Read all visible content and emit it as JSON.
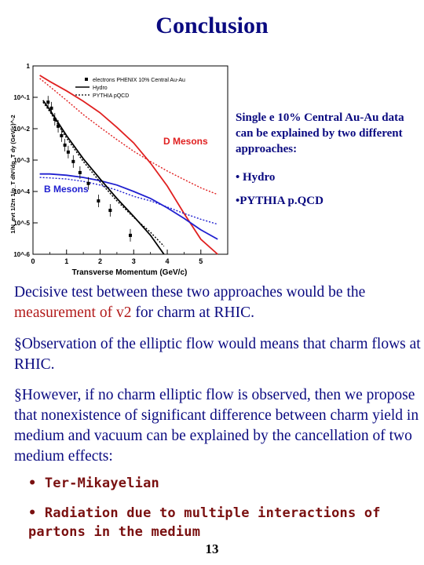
{
  "slide": {
    "title": "Conclusion",
    "page_number": "13"
  },
  "figure": {
    "ylabel": "1/N_evt 1/2π 1/p_T dN²/dp_T dy (GeV/c)^-2",
    "xlabel": "Transverse Momentum (GeV/c)",
    "legend": [
      {
        "label": "electrons PHENIX 10% Central Au-Au",
        "style": "marker"
      },
      {
        "label": "Hydro",
        "style": "solid"
      },
      {
        "label": "PYTHIA pQCD",
        "style": "dotted"
      }
    ],
    "annotations": {
      "d_mesons": "D Mesons",
      "b_mesons": "B Mesons"
    },
    "colors": {
      "red": "#e02020",
      "blue": "#2020d0",
      "black": "#000000"
    }
  },
  "chart_data": {
    "type": "line",
    "xlabel": "Transverse Momentum (GeV/c)",
    "ylabel": "1/N_evt 1/2π 1/p_T dN²/dp_T dy (GeV/c)^-2",
    "xlim": [
      0,
      5.8
    ],
    "ylim_log10": [
      -6,
      0
    ],
    "yscale": "log",
    "xticks": [
      "0",
      "1",
      "2",
      "3",
      "4",
      "5"
    ],
    "yticks": [
      "1",
      "10^-1",
      "10^-2",
      "10^-3",
      "10^-4",
      "10^-5",
      "10^-6"
    ],
    "series": [
      {
        "name": "D Mesons Hydro",
        "color": "#e02020",
        "style": "solid",
        "x": [
          0.2,
          0.5,
          1.0,
          1.5,
          2.0,
          2.5,
          3.0,
          3.5,
          4.0,
          4.5,
          5.0,
          5.5
        ],
        "y": [
          0.5,
          0.32,
          0.16,
          0.075,
          0.032,
          0.011,
          0.0035,
          0.0008,
          0.00015,
          2e-05,
          3e-06,
          1e-06
        ]
      },
      {
        "name": "D Mesons PYTHIA",
        "color": "#e02020",
        "style": "dotted",
        "x": [
          0.2,
          0.5,
          1.0,
          1.5,
          2.0,
          2.5,
          3.0,
          3.5,
          4.0,
          4.5,
          5.0,
          5.5
        ],
        "y": [
          0.4,
          0.22,
          0.08,
          0.028,
          0.011,
          0.0045,
          0.0019,
          0.0009,
          0.00045,
          0.00024,
          0.00013,
          8e-05
        ]
      },
      {
        "name": "B Mesons Hydro",
        "color": "#2020d0",
        "style": "solid",
        "x": [
          0.2,
          0.5,
          1.0,
          1.5,
          2.0,
          2.5,
          3.0,
          3.5,
          4.0,
          4.5,
          5.0,
          5.5
        ],
        "y": [
          0.00036,
          0.00036,
          0.00033,
          0.00028,
          0.00022,
          0.00016,
          0.0001,
          6e-05,
          3e-05,
          1.4e-05,
          6e-06,
          3e-06
        ]
      },
      {
        "name": "B Mesons PYTHIA",
        "color": "#2020d0",
        "style": "dotted",
        "x": [
          0.2,
          0.5,
          1.0,
          1.5,
          2.0,
          2.5,
          3.0,
          3.5,
          4.0,
          4.5,
          5.0,
          5.5
        ],
        "y": [
          0.00028,
          0.00027,
          0.00025,
          0.00021,
          0.00016,
          0.00011,
          7e-05,
          5e-05,
          3.2e-05,
          2e-05,
          1.3e-05,
          9e-06
        ]
      },
      {
        "name": "Sum Hydro",
        "color": "#000000",
        "style": "solid",
        "x": [
          0.3,
          0.5,
          1.0,
          1.5,
          2.0,
          2.5,
          3.0,
          3.5,
          3.9
        ],
        "y": [
          0.08,
          0.04,
          0.006,
          0.0011,
          0.00025,
          6e-05,
          1.6e-05,
          4e-06,
          1e-06
        ]
      },
      {
        "name": "Sum PYTHIA",
        "color": "#000000",
        "style": "dotted",
        "x": [
          0.3,
          0.5,
          1.0,
          1.5,
          2.0,
          2.5,
          3.0,
          3.5,
          3.9
        ],
        "y": [
          0.07,
          0.035,
          0.005,
          0.0009,
          0.0002,
          5e-05,
          1.5e-05,
          5e-06,
          1.8e-06
        ]
      },
      {
        "name": "electrons PHENIX 10% Central Au-Au",
        "color": "#000000",
        "style": "marker",
        "x": [
          0.45,
          0.55,
          0.65,
          0.75,
          0.85,
          0.95,
          1.05,
          1.2,
          1.4,
          1.65,
          1.95,
          2.3,
          2.9
        ],
        "y": [
          0.07,
          0.045,
          0.02,
          0.012,
          0.006,
          0.003,
          0.0018,
          0.0009,
          0.0004,
          0.00018,
          5e-05,
          2.5e-05,
          4e-06
        ]
      }
    ]
  },
  "side_text": {
    "intro": "Single e 10% Central Au-Au data can be explained by two different approaches:",
    "item1": "• Hydro",
    "item2": "•PYTHIA p.QCD"
  },
  "body": {
    "p1_a": "Decisive test between these two approaches would be the ",
    "p1_highlight": "measurement of v2",
    "p1_b": " for charm at RHIC.",
    "p2": "§Observation of the elliptic flow would means that charm flows at RHIC.",
    "p3": "§However, if no charm elliptic flow is observed, then we propose that nonexistence of significant difference between charm yield in medium and vacuum can be explained by the cancellation of two medium effects:",
    "bullet1": "• Ter-Mikayelian",
    "bullet2": "• Radiation due to multiple interactions of partons in the medium"
  }
}
